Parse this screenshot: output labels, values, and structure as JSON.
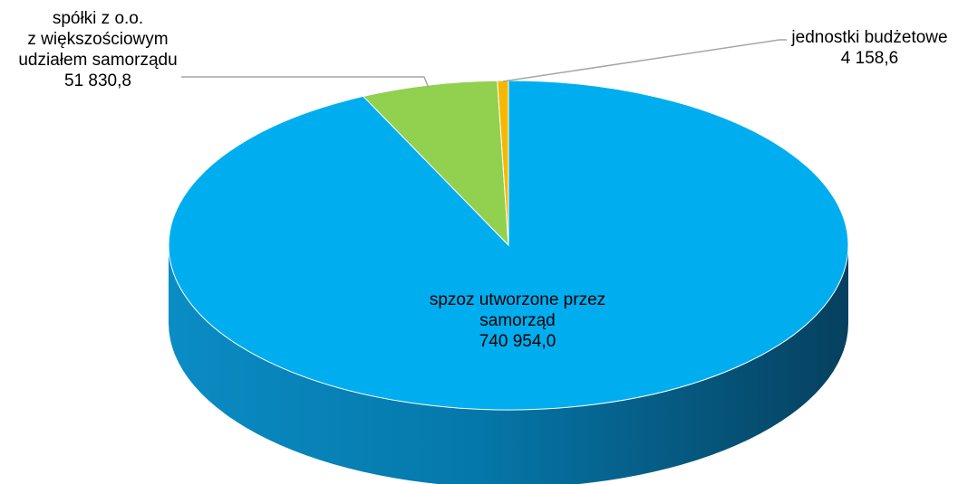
{
  "chart_data": {
    "type": "pie",
    "style": "3d",
    "slices": [
      {
        "label_lines": [
          "spzoz utworzone przez",
          "samorząd"
        ],
        "value": 740954.0,
        "value_text": "740 954,0",
        "color": "#00AEEF",
        "side_color_dark": "#06405F",
        "side_color_light": "#0A8CC4"
      },
      {
        "label_lines": [
          "spółki z o.o.",
          "z większościowym",
          "udziałem samorządu"
        ],
        "value": 51830.8,
        "value_text": "51 830,8",
        "color": "#92D050"
      },
      {
        "label_lines": [
          "jednostki budżetowe"
        ],
        "value": 4158.6,
        "value_text": "4 158,6",
        "color": "#F5B800"
      }
    ],
    "legend": "none",
    "label_position": "inside for largest slice, outside with leader lines for small slices"
  }
}
